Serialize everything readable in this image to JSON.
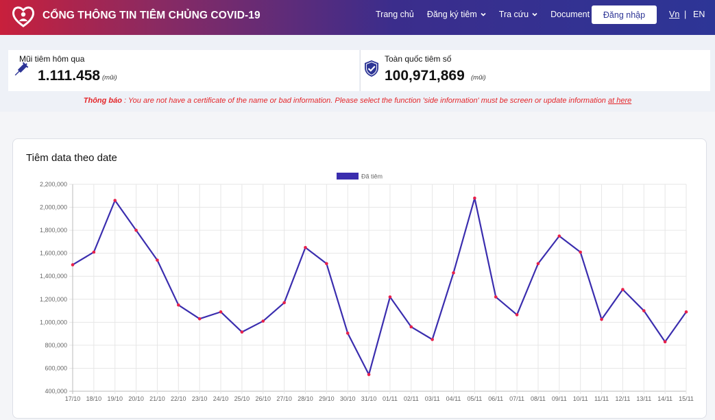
{
  "header": {
    "site_title": "CỔNG THÔNG TIN TIÊM CHỦNG COVID-19",
    "nav": [
      {
        "label": "Trang chủ",
        "has_dropdown": false
      },
      {
        "label": "Đăng ký tiêm",
        "has_dropdown": true
      },
      {
        "label": "Tra cứu",
        "has_dropdown": true
      },
      {
        "label": "Document",
        "has_dropdown": false
      }
    ],
    "login_label": "Đăng nhập",
    "lang_vn": "Vn",
    "lang_sep": "|",
    "lang_en": "EN",
    "colors": {
      "gradient_start": "#c8203c",
      "gradient_end": "#2d3596"
    }
  },
  "stats": {
    "yesterday": {
      "label": "Mũi tiêm hôm qua",
      "value": "1.111.458",
      "unit": "(mũi)",
      "icon": "syringe-icon"
    },
    "nationwide": {
      "label": "Toàn quốc tiêm số",
      "value": "100,971,869",
      "unit": "(mũi)",
      "icon": "shield-check-icon"
    }
  },
  "notice": {
    "prefix": "Thông báo",
    "message": " : You are not have a certificate of the name or bad information. Please select the function 'side information' must be screen or update information ",
    "link": "at here"
  },
  "chart_title": "Tiêm data theo date",
  "chart_data": {
    "type": "line",
    "categories": [
      "17/10",
      "18/10",
      "19/10",
      "20/10",
      "21/10",
      "22/10",
      "23/10",
      "24/10",
      "25/10",
      "26/10",
      "27/10",
      "28/10",
      "29/10",
      "30/10",
      "31/10",
      "01/11",
      "02/11",
      "03/11",
      "04/11",
      "05/11",
      "06/11",
      "07/11",
      "08/11",
      "09/11",
      "10/11",
      "11/11",
      "12/11",
      "13/11",
      "14/11",
      "15/11"
    ],
    "series": [
      {
        "name": "Đã tiêm",
        "values": [
          1500000,
          1610000,
          2060000,
          1800000,
          1540000,
          1150000,
          1030000,
          1090000,
          915000,
          1010000,
          1170000,
          1650000,
          1510000,
          905000,
          545000,
          1220000,
          960000,
          850000,
          1430000,
          2080000,
          1220000,
          1065000,
          1510000,
          1750000,
          1610000,
          1025000,
          1285000,
          1100000,
          830000,
          1090000
        ]
      }
    ],
    "ylim": [
      400000,
      2200000
    ],
    "yticks": [
      400000,
      600000,
      800000,
      1000000,
      1200000,
      1400000,
      1600000,
      1800000,
      2000000,
      2200000
    ],
    "ytick_labels": [
      "400,000",
      "600,000",
      "800,000",
      "1,000,000",
      "1,200,000",
      "1,400,000",
      "1,600,000",
      "1,800,000",
      "2,000,000",
      "2,200,000"
    ],
    "grid": true,
    "legend": "top-center",
    "line_color": "#3a2dae",
    "point_color": "#e8204a"
  }
}
